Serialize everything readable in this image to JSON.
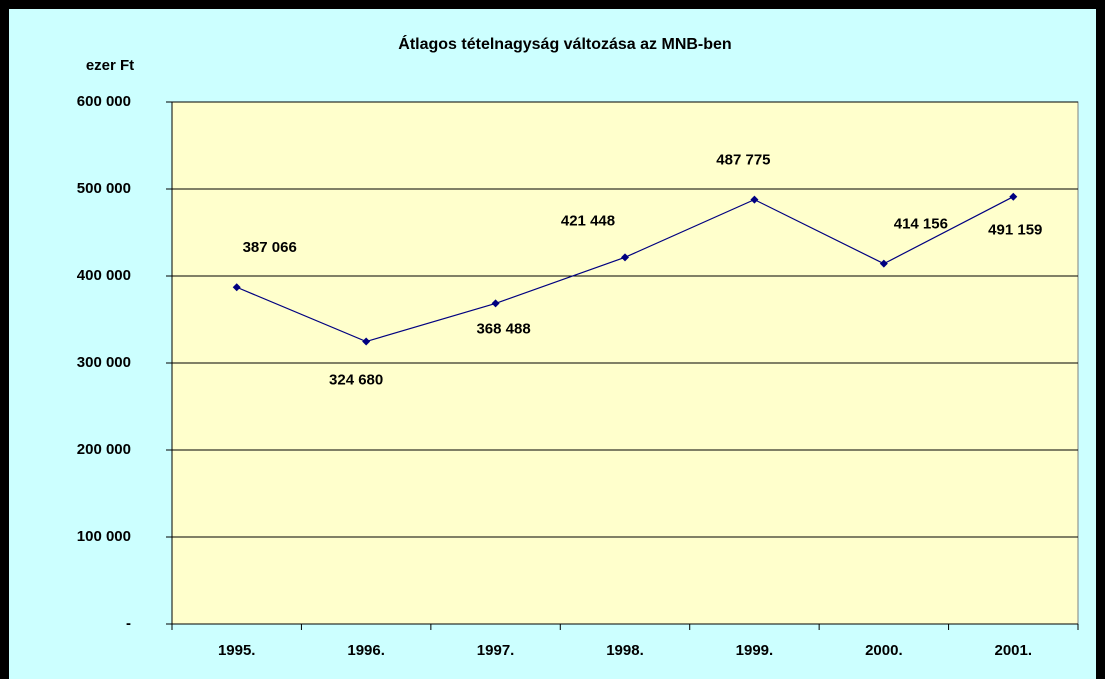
{
  "chart_data": {
    "type": "line",
    "title": "Átlagos tételnagyság változása az MNB-ben",
    "y_label": "ezer Ft",
    "categories": [
      "1995.",
      "1996.",
      "1997.",
      "1998.",
      "1999.",
      "2000.",
      "2001."
    ],
    "series": [
      {
        "color": "#000080",
        "values": [
          387066,
          324680,
          368488,
          421448,
          487775,
          414156,
          491159
        ],
        "value_labels": [
          "387 066",
          "324 680",
          "368 488",
          "421 448",
          "487 775",
          "414 156",
          "491 159"
        ]
      }
    ],
    "ylim": [
      0,
      600000
    ],
    "yticks": [
      {
        "value": 0,
        "label": "-"
      },
      {
        "value": 100000,
        "label": "100 000"
      },
      {
        "value": 200000,
        "label": "200 000"
      },
      {
        "value": 300000,
        "label": "300 000"
      },
      {
        "value": 400000,
        "label": "400 000"
      },
      {
        "value": 500000,
        "label": "500 000"
      },
      {
        "value": 600000,
        "label": "600 000"
      }
    ],
    "grid": true
  }
}
